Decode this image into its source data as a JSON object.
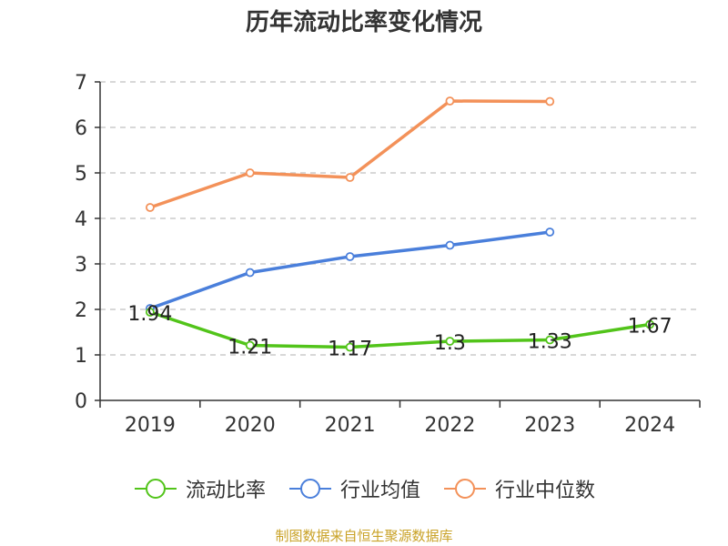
{
  "page": {
    "title": "历年流动比率变化情况",
    "source": "制图数据来自恒生聚源数据库"
  },
  "chart_data": {
    "type": "line",
    "title": "历年流动比率变化情况",
    "categories": [
      "2019",
      "2020",
      "2021",
      "2022",
      "2023",
      "2024"
    ],
    "ylim": [
      0,
      7
    ],
    "yticks": [
      0,
      1,
      2,
      3,
      4,
      5,
      6,
      7
    ],
    "grid": true,
    "legend_position": "bottom",
    "series": [
      {
        "name": "流动比率",
        "color": "#52c41a",
        "values": [
          1.94,
          1.21,
          1.17,
          1.3,
          1.33,
          1.67
        ],
        "labels": [
          "1.94",
          "1.21",
          "1.17",
          "1.3",
          "1.33",
          "1.67"
        ]
      },
      {
        "name": "行业均值",
        "color": "#4a7fdb",
        "values": [
          2.02,
          2.81,
          3.16,
          3.41,
          3.7,
          null
        ]
      },
      {
        "name": "行业中位数",
        "color": "#f39159",
        "values": [
          4.24,
          5.0,
          4.9,
          6.58,
          6.57,
          null
        ]
      }
    ]
  }
}
